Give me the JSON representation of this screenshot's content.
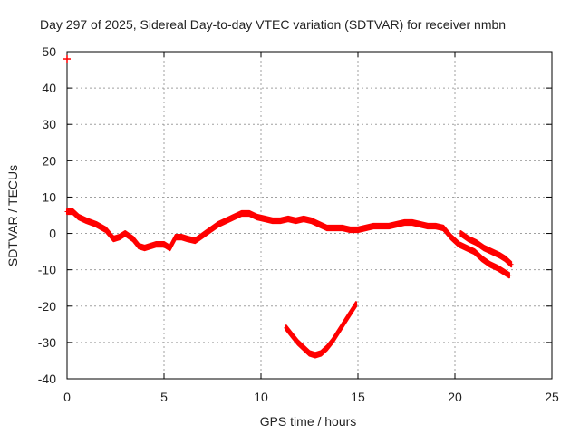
{
  "chart_data": {
    "type": "scatter",
    "title": "Day 297 of 2025, Sidereal Day-to-day VTEC variation (SDTVAR) for receiver nmbn",
    "xlabel": "GPS time / hours",
    "ylabel": "SDTVAR / TECUs",
    "xlim": [
      0,
      25
    ],
    "ylim": [
      -40,
      50
    ],
    "xticks": [
      0,
      5,
      10,
      15,
      20,
      25
    ],
    "yticks": [
      -40,
      -30,
      -20,
      -10,
      0,
      10,
      20,
      30,
      40,
      50
    ],
    "xtick_labels": [
      "0",
      "5",
      "10",
      "15",
      "20",
      "25"
    ],
    "ytick_labels": [
      "-40",
      "-30",
      "-20",
      "-10",
      "0",
      "10",
      "20",
      "30",
      "40",
      "50"
    ],
    "grid": true,
    "marker": "+",
    "color": "#ff0000",
    "series": [
      {
        "name": "main-band",
        "x": [
          0.0,
          0.3,
          0.6,
          1.0,
          1.5,
          2.0,
          2.4,
          2.7,
          3.0,
          3.4,
          3.7,
          4.0,
          4.3,
          4.6,
          5.0,
          5.3,
          5.6,
          5.9,
          6.2,
          6.6,
          7.0,
          7.4,
          7.8,
          8.2,
          8.6,
          9.0,
          9.4,
          9.8,
          10.2,
          10.6,
          11.0,
          11.4,
          11.8,
          12.2,
          12.6,
          13.0,
          13.4,
          13.8,
          14.2,
          14.6,
          15.0,
          15.4,
          15.8,
          16.2,
          16.6,
          17.0,
          17.4,
          17.8,
          18.2,
          18.6,
          19.0,
          19.4,
          19.8,
          20.2,
          20.6,
          21.0,
          21.4,
          21.8,
          22.2,
          22.5,
          22.8
        ],
        "y": [
          6.0,
          6.0,
          4.5,
          3.5,
          2.5,
          1.0,
          -1.5,
          -1.0,
          0.0,
          -1.5,
          -3.5,
          -4.0,
          -3.5,
          -3.0,
          -3.0,
          -4.0,
          -1.0,
          -1.0,
          -1.5,
          -2.0,
          -0.5,
          1.0,
          2.5,
          3.5,
          4.5,
          5.5,
          5.5,
          4.5,
          4.0,
          3.5,
          3.5,
          4.0,
          3.5,
          4.0,
          3.5,
          2.5,
          1.5,
          1.5,
          1.5,
          1.0,
          1.0,
          1.5,
          2.0,
          2.0,
          2.0,
          2.5,
          3.0,
          3.0,
          2.5,
          2.0,
          2.0,
          1.5,
          -1.0,
          -3.0,
          -4.0,
          -5.0,
          -7.0,
          -8.5,
          -9.5,
          -10.5,
          -11.5
        ]
      },
      {
        "name": "upper-branch",
        "x": [
          20.3,
          20.7,
          21.1,
          21.5,
          21.9,
          22.3,
          22.6,
          22.9
        ],
        "y": [
          0.0,
          -1.5,
          -2.5,
          -4.0,
          -5.0,
          -6.0,
          -7.0,
          -8.5
        ]
      },
      {
        "name": "dip-arc",
        "x": [
          11.3,
          11.6,
          11.9,
          12.2,
          12.5,
          12.8,
          13.1,
          13.4,
          13.7,
          14.0,
          14.3,
          14.6,
          14.9
        ],
        "y": [
          -26.0,
          -28.0,
          -30.0,
          -31.5,
          -33.0,
          -33.5,
          -33.0,
          -31.5,
          -29.5,
          -27.0,
          -24.5,
          -22.0,
          -19.5
        ]
      },
      {
        "name": "outlier",
        "x": [
          0.0
        ],
        "y": [
          48.0
        ]
      }
    ]
  }
}
